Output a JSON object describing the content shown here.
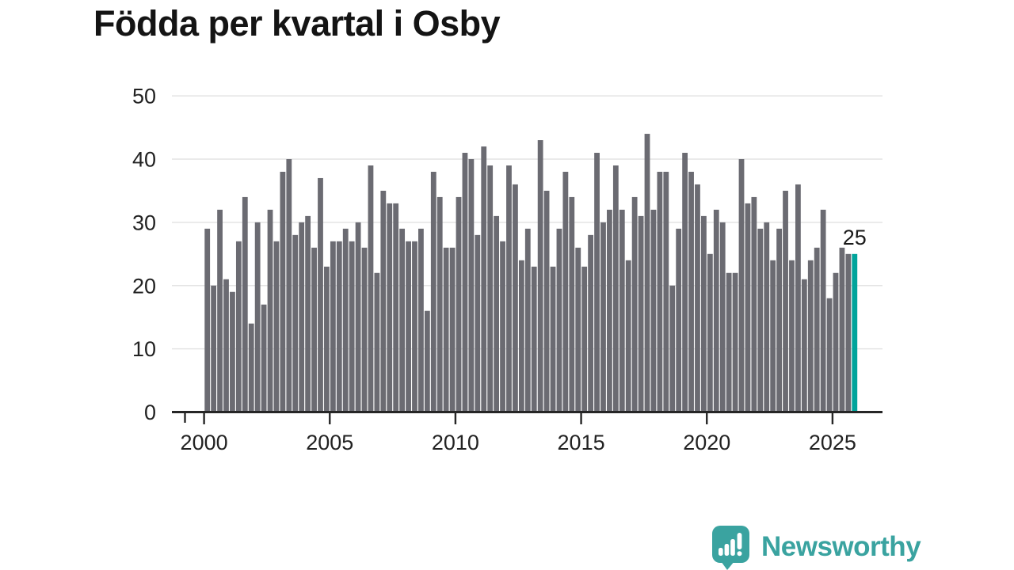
{
  "title": "Födda per kvartal i Osby",
  "annotation": {
    "label": "25"
  },
  "logo": {
    "text": "Newsworthy"
  },
  "colors": {
    "bar": "#6b6b72",
    "highlight": "#00a49b",
    "grid": "#e4e4e4",
    "axis": "#262626",
    "tick_text": "#222222",
    "annotation_text": "#1a1a1a",
    "logo": "#3aa3a0"
  },
  "chart_data": {
    "type": "bar",
    "title": "Födda per kvartal i Osby",
    "xlabel": "",
    "ylabel": "",
    "frequency": "quarterly",
    "x_start": "2000-Q1",
    "x_end": "2025-Q4",
    "x_tick_years": [
      2000,
      2005,
      2010,
      2015,
      2020,
      2025
    ],
    "y_ticks": [
      0,
      10,
      20,
      30,
      40,
      50
    ],
    "ylim": [
      0,
      50
    ],
    "grid": true,
    "highlighted_index": 103,
    "highlighted_value_label": "25",
    "values": [
      29,
      20,
      32,
      21,
      19,
      27,
      34,
      14,
      30,
      17,
      32,
      27,
      38,
      40,
      28,
      30,
      31,
      26,
      37,
      23,
      27,
      27,
      29,
      27,
      30,
      26,
      39,
      22,
      35,
      33,
      33,
      29,
      27,
      27,
      29,
      16,
      38,
      34,
      26,
      26,
      34,
      41,
      40,
      28,
      42,
      39,
      31,
      27,
      39,
      36,
      24,
      29,
      23,
      43,
      35,
      23,
      29,
      38,
      34,
      26,
      23,
      28,
      41,
      30,
      32,
      39,
      32,
      24,
      34,
      31,
      44,
      32,
      38,
      38,
      20,
      29,
      41,
      38,
      36,
      31,
      25,
      32,
      30,
      22,
      22,
      40,
      33,
      34,
      29,
      30,
      24,
      29,
      35,
      24,
      36,
      21,
      24,
      26,
      32,
      18,
      22,
      26,
      25,
      25
    ]
  }
}
